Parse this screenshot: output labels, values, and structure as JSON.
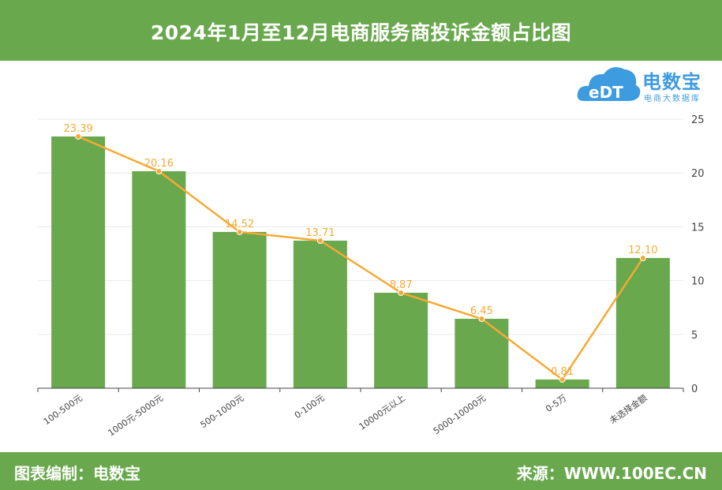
{
  "header": {
    "title": "2024年1月至12月电商服务商投诉金额占比图"
  },
  "footer": {
    "left": "图表编制：电数宝",
    "right": "来源：WWW.100EC.CN"
  },
  "logo": {
    "name": "电数宝",
    "sub": "电商大数据库",
    "mark": "eDT"
  },
  "colors": {
    "bar": "#69a84d",
    "line": "#f6a935",
    "header": "#69a84d",
    "logo": "#3d9be0"
  },
  "chart_data": {
    "type": "bar",
    "categories": [
      "100-500元",
      "1000元-5000元",
      "500-1000元",
      "0-100元",
      "10000元以上",
      "5000-10000元",
      "0-5万",
      "未选择金额"
    ],
    "series": [
      {
        "type": "bar",
        "values": [
          23.39,
          20.16,
          14.52,
          13.71,
          8.87,
          6.45,
          0.81,
          12.1
        ]
      },
      {
        "type": "line",
        "values": [
          23.39,
          20.16,
          14.52,
          13.71,
          8.87,
          6.45,
          0.81,
          12.1
        ]
      }
    ],
    "data_labels": [
      "23.39",
      "20.16",
      "14.52",
      "13.71",
      "8.87",
      "6.45",
      "0.81",
      "12.10"
    ],
    "yticks": [
      "0",
      "5",
      "10",
      "15",
      "20",
      "25"
    ],
    "ylim": [
      0,
      25
    ],
    "y_axis_position": "right",
    "grid": true
  }
}
